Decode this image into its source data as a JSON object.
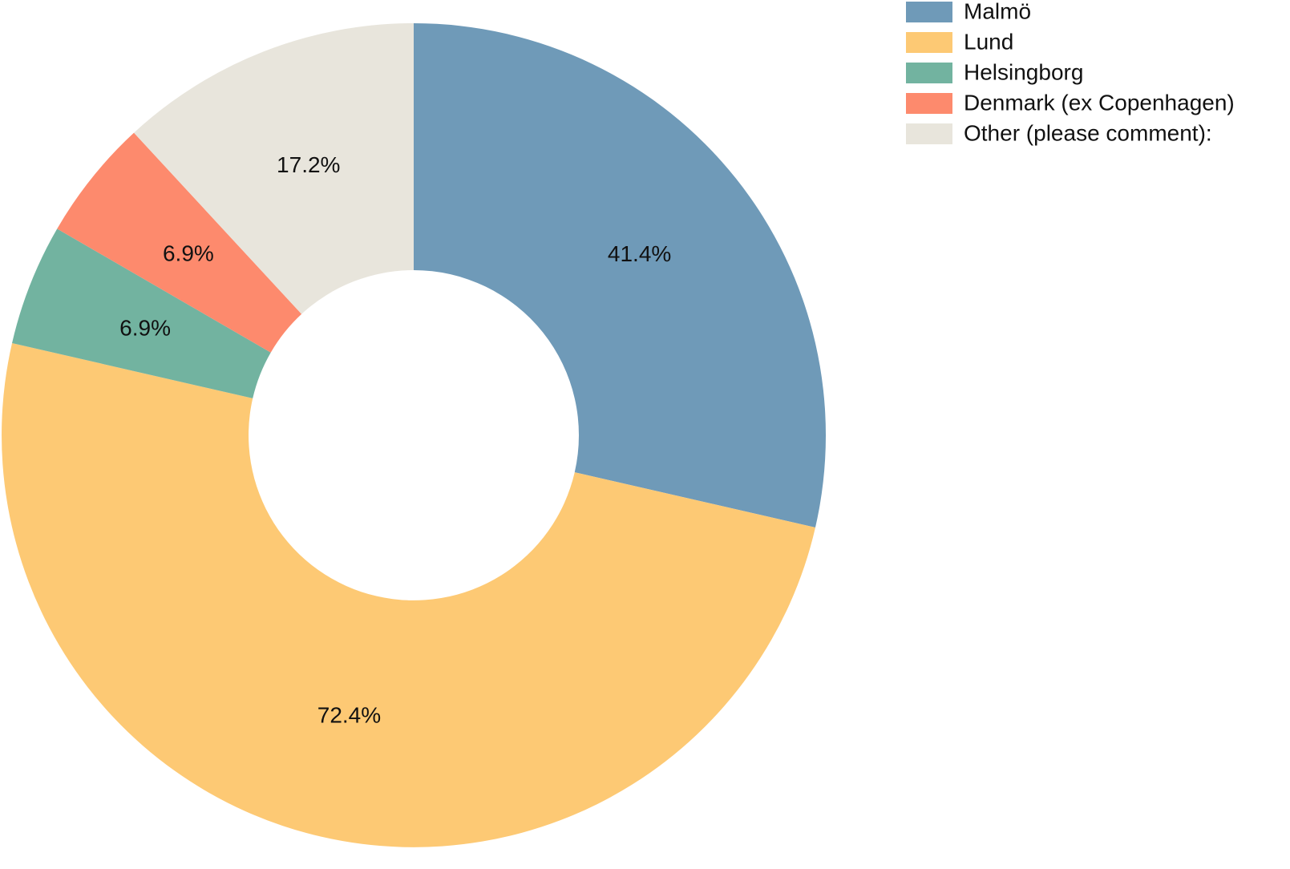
{
  "chart_data": {
    "type": "donut",
    "categories": [
      "Malmö",
      "Lund",
      "Helsingborg",
      "Denmark (ex Copenhagen)",
      "Other (please comment):"
    ],
    "values": [
      41.4,
      72.4,
      6.9,
      6.9,
      17.2
    ],
    "value_labels": [
      "41.4%",
      "72.4%",
      "6.9%",
      "6.9%",
      "17.2%"
    ],
    "colors": [
      "#6f9ab8",
      "#fdc974",
      "#72b3a0",
      "#fd8a6d",
      "#e8e5dc"
    ],
    "legend": "top-right"
  }
}
